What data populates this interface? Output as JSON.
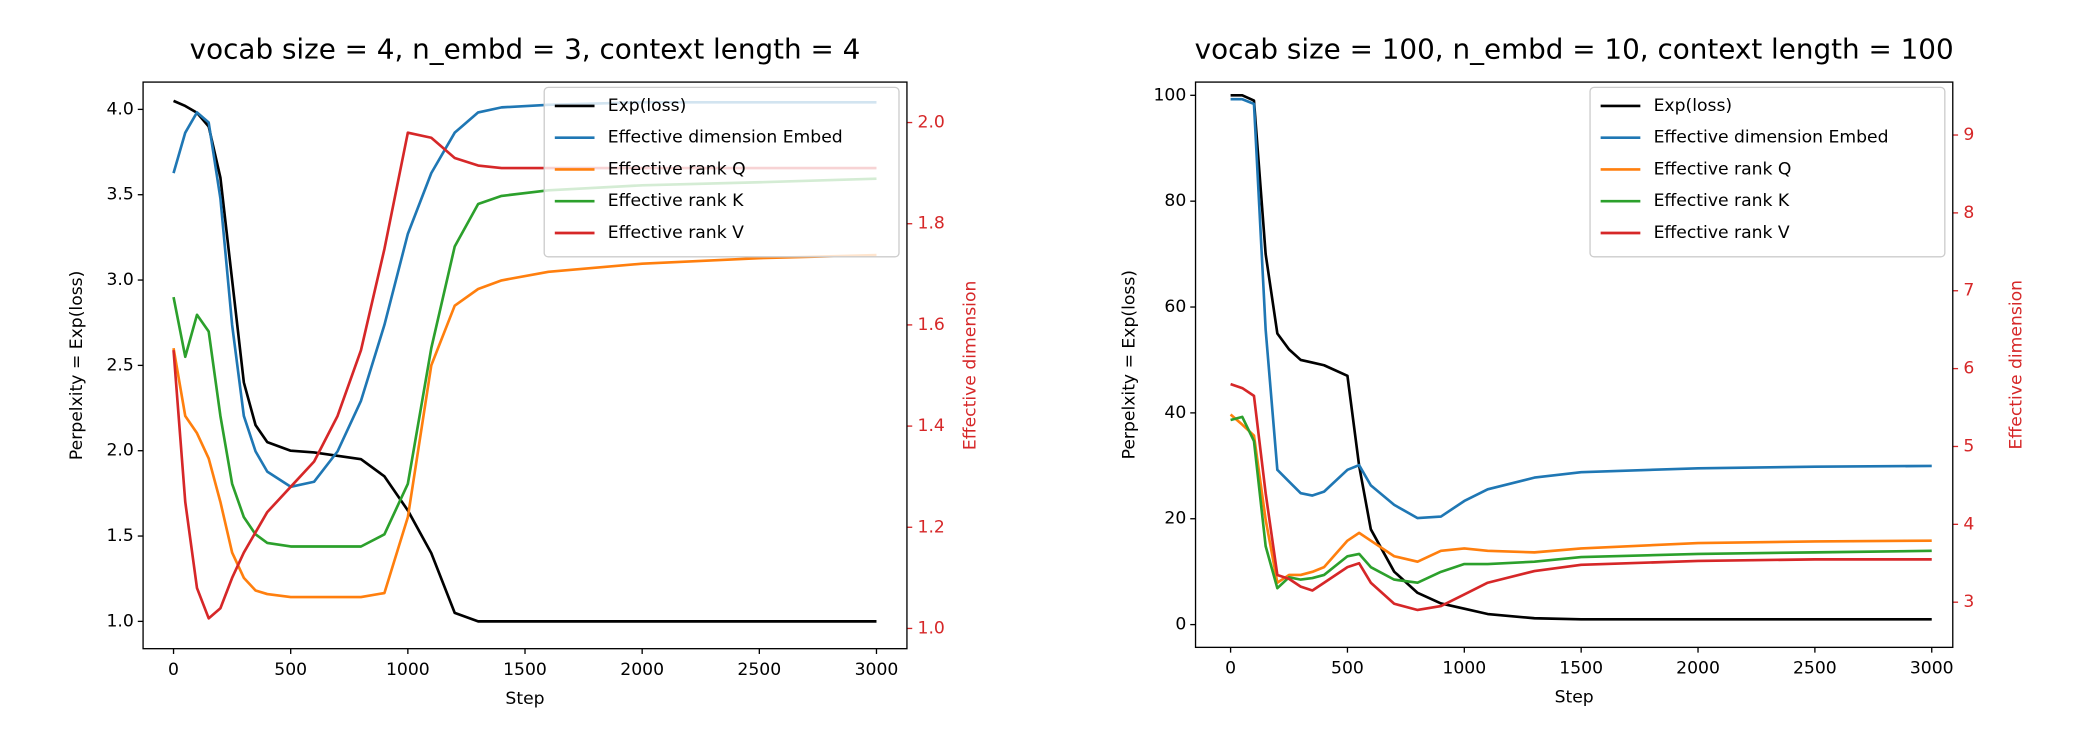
{
  "chart_data": [
    {
      "type": "line",
      "title": "vocab size = 4, n_embd = 3, context length = 4",
      "x_label": "Step",
      "y_label": "Perpelxity = Exp(loss)",
      "y2_label": "Effective dimension",
      "x": [
        0,
        50,
        100,
        150,
        200,
        250,
        300,
        350,
        400,
        500,
        600,
        700,
        800,
        900,
        1000,
        1100,
        1200,
        1300,
        1400,
        1600,
        2000,
        2500,
        3000
      ],
      "xlim": [
        -130,
        3130
      ],
      "xticks": [
        0,
        500,
        1000,
        1500,
        2000,
        2500,
        3000
      ],
      "ylim": [
        0.84,
        4.16
      ],
      "yticks": [
        {
          "value": 1,
          "label": "1.0"
        },
        1.5,
        {
          "value": 2,
          "label": "2.0"
        },
        2.5,
        {
          "value": 3,
          "label": "3.0"
        },
        3.5,
        {
          "value": 4,
          "label": "4.0"
        }
      ],
      "y2lim": [
        0.96,
        2.08
      ],
      "y2ticks": [
        {
          "value": 1,
          "label": "1.0"
        },
        1.2,
        1.4,
        1.6,
        1.8,
        {
          "value": 2,
          "label": "2.0"
        }
      ],
      "legend": "upper right",
      "series": [
        {
          "name": "Exp(loss)",
          "color": "#000000",
          "values": [
            4.05,
            4.02,
            3.98,
            3.9,
            3.6,
            3.0,
            2.4,
            2.15,
            2.05,
            2.0,
            1.99,
            1.97,
            1.95,
            1.85,
            1.65,
            1.4,
            1.05,
            1.0,
            1.0,
            1.0,
            1.0,
            1.0,
            1.0
          ]
        },
        {
          "name": "Effective dimension Embed",
          "color": "#1f77b4",
          "axis": "y2",
          "values": [
            1.9,
            1.98,
            2.02,
            2.0,
            1.85,
            1.6,
            1.42,
            1.35,
            1.31,
            1.28,
            1.29,
            1.35,
            1.45,
            1.6,
            1.78,
            1.9,
            1.98,
            2.02,
            2.03,
            2.035,
            2.04,
            2.04,
            2.04
          ]
        },
        {
          "name": "Effective rank Q",
          "color": "#ff7f0e",
          "axis": "y2",
          "values": [
            1.554,
            1.42,
            1.386,
            1.336,
            1.25,
            1.15,
            1.1,
            1.075,
            1.068,
            1.062,
            1.062,
            1.062,
            1.062,
            1.07,
            1.22,
            1.52,
            1.638,
            1.671,
            1.688,
            1.705,
            1.721,
            1.732,
            1.738
          ]
        },
        {
          "name": "Effective rank K",
          "color": "#2ca02c",
          "axis": "y2",
          "values": [
            1.655,
            1.537,
            1.62,
            1.587,
            1.42,
            1.286,
            1.22,
            1.186,
            1.169,
            1.162,
            1.162,
            1.162,
            1.162,
            1.186,
            1.286,
            1.554,
            1.755,
            1.839,
            1.855,
            1.866,
            1.876,
            1.882,
            1.889
          ]
        },
        {
          "name": "Effective rank V",
          "color": "#d62728",
          "axis": "y2",
          "values": [
            1.55,
            1.25,
            1.08,
            1.02,
            1.04,
            1.1,
            1.15,
            1.19,
            1.23,
            1.28,
            1.33,
            1.42,
            1.55,
            1.75,
            1.98,
            1.97,
            1.93,
            1.915,
            1.91,
            1.91,
            1.91,
            1.91,
            1.91
          ]
        }
      ]
    },
    {
      "type": "line",
      "title": "vocab size = 100, n_embd = 10, context length = 100",
      "x_label": "Step",
      "y_label": "Perpelxity = Exp(loss)",
      "y2_label": "Effective dimension",
      "x": [
        0,
        50,
        100,
        150,
        200,
        250,
        300,
        350,
        400,
        500,
        550,
        600,
        700,
        800,
        900,
        1000,
        1100,
        1300,
        1500,
        2000,
        2500,
        3000
      ],
      "xlim": [
        -150,
        3090
      ],
      "xticks": [
        0,
        500,
        1000,
        1500,
        2000,
        2500,
        3000
      ],
      "ylim": [
        -4.3,
        102.5
      ],
      "yticks": [
        0,
        20,
        40,
        60,
        80,
        100
      ],
      "y2lim": [
        2.42,
        9.68
      ],
      "y2ticks": [
        3,
        4,
        5,
        6,
        7,
        8,
        9
      ],
      "legend": "upper right",
      "series": [
        {
          "name": "Exp(loss)",
          "color": "#000000",
          "values": [
            100,
            100,
            99,
            70,
            55,
            52,
            50,
            49.5,
            49,
            47,
            30,
            18,
            10,
            6,
            4,
            3,
            2,
            1.2,
            1,
            1,
            1,
            1
          ]
        },
        {
          "name": "Effective dimension Embed",
          "color": "#1f77b4",
          "axis": "y2",
          "values": [
            9.46,
            9.46,
            9.4,
            6.5,
            4.7,
            4.55,
            4.4,
            4.37,
            4.42,
            4.7,
            4.76,
            4.5,
            4.25,
            4.08,
            4.1,
            4.3,
            4.45,
            4.6,
            4.67,
            4.72,
            4.74,
            4.75
          ]
        },
        {
          "name": "Effective rank Q",
          "color": "#ff7f0e",
          "axis": "y2",
          "values": [
            5.41,
            5.28,
            5.14,
            4.06,
            3.25,
            3.35,
            3.35,
            3.39,
            3.45,
            3.79,
            3.89,
            3.79,
            3.59,
            3.52,
            3.66,
            3.69,
            3.66,
            3.64,
            3.69,
            3.76,
            3.78,
            3.79
          ]
        },
        {
          "name": "Effective rank K",
          "color": "#2ca02c",
          "axis": "y2",
          "values": [
            5.34,
            5.38,
            5.07,
            3.72,
            3.18,
            3.32,
            3.29,
            3.31,
            3.35,
            3.59,
            3.62,
            3.45,
            3.29,
            3.25,
            3.39,
            3.49,
            3.49,
            3.52,
            3.58,
            3.62,
            3.64,
            3.66
          ]
        },
        {
          "name": "Effective rank V",
          "color": "#d62728",
          "axis": "y2",
          "values": [
            5.8,
            5.75,
            5.65,
            4.4,
            3.35,
            3.3,
            3.2,
            3.15,
            3.25,
            3.45,
            3.5,
            3.25,
            2.98,
            2.9,
            2.95,
            3.1,
            3.25,
            3.4,
            3.48,
            3.53,
            3.55,
            3.55
          ]
        }
      ]
    }
  ]
}
